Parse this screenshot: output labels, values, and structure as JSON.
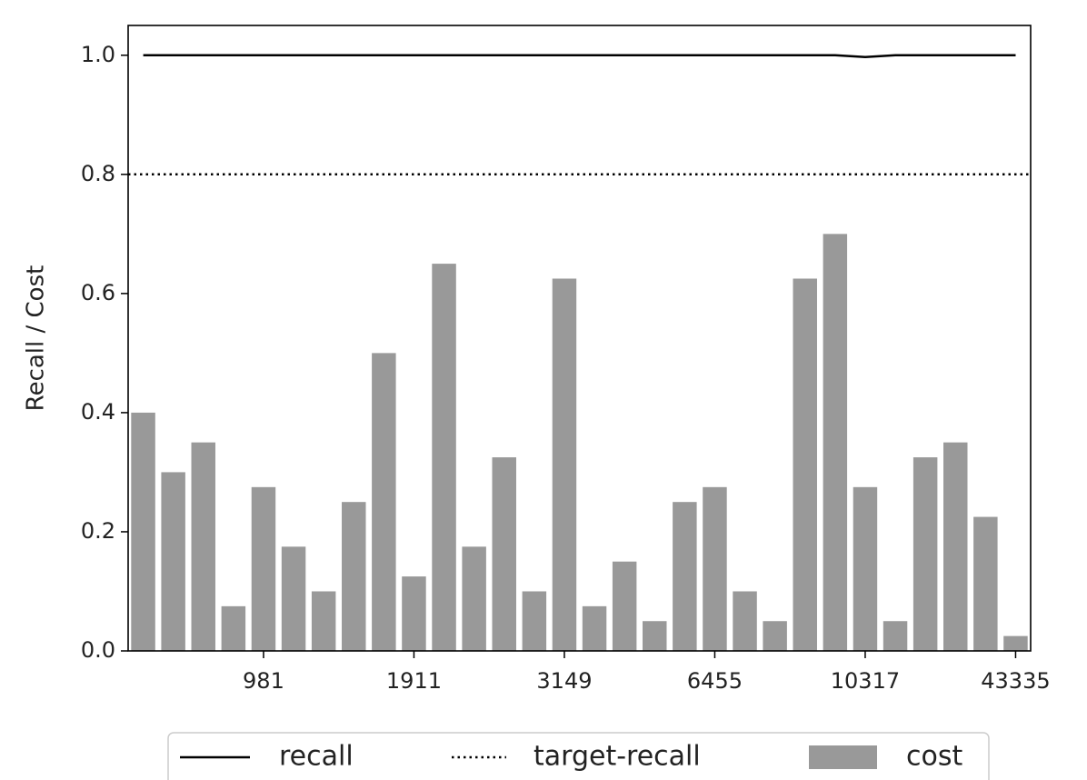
{
  "chart_data": {
    "type": "bar",
    "ylabel": "Recall / Cost",
    "categories": [
      null,
      null,
      null,
      null,
      "981",
      null,
      null,
      null,
      null,
      "1911",
      null,
      null,
      null,
      null,
      "3149",
      null,
      null,
      null,
      null,
      "6455",
      null,
      null,
      null,
      null,
      "10317",
      null,
      null,
      null,
      null,
      "43335"
    ],
    "series": [
      {
        "name": "recall",
        "kind": "line",
        "color": "#000000",
        "values": [
          1.0,
          1.0,
          1.0,
          1.0,
          1.0,
          1.0,
          1.0,
          1.0,
          1.0,
          1.0,
          1.0,
          1.0,
          1.0,
          1.0,
          1.0,
          1.0,
          1.0,
          1.0,
          1.0,
          1.0,
          1.0,
          1.0,
          1.0,
          1.0,
          0.997,
          1.0,
          1.0,
          1.0,
          1.0,
          1.0
        ]
      },
      {
        "name": "target-recall",
        "kind": "hline",
        "line_style": "dotted",
        "color": "#000000",
        "value": 0.8
      },
      {
        "name": "cost",
        "kind": "bar",
        "color": "#999999",
        "values": [
          0.4,
          0.3,
          0.35,
          0.075,
          0.275,
          0.175,
          0.1,
          0.25,
          0.5,
          0.125,
          0.65,
          0.175,
          0.325,
          0.1,
          0.625,
          0.075,
          0.15,
          0.05,
          0.25,
          0.275,
          0.1,
          0.05,
          0.625,
          0.7,
          0.275,
          0.05,
          0.325,
          0.35,
          0.225,
          0.025
        ]
      }
    ],
    "ylim": [
      0,
      1.05
    ],
    "yticks": [
      {
        "value": 0,
        "label": "0.0"
      },
      0.2,
      0.4,
      0.6,
      0.8,
      {
        "value": 1,
        "label": "1.0"
      }
    ],
    "grid": false,
    "legend": "bottom"
  }
}
